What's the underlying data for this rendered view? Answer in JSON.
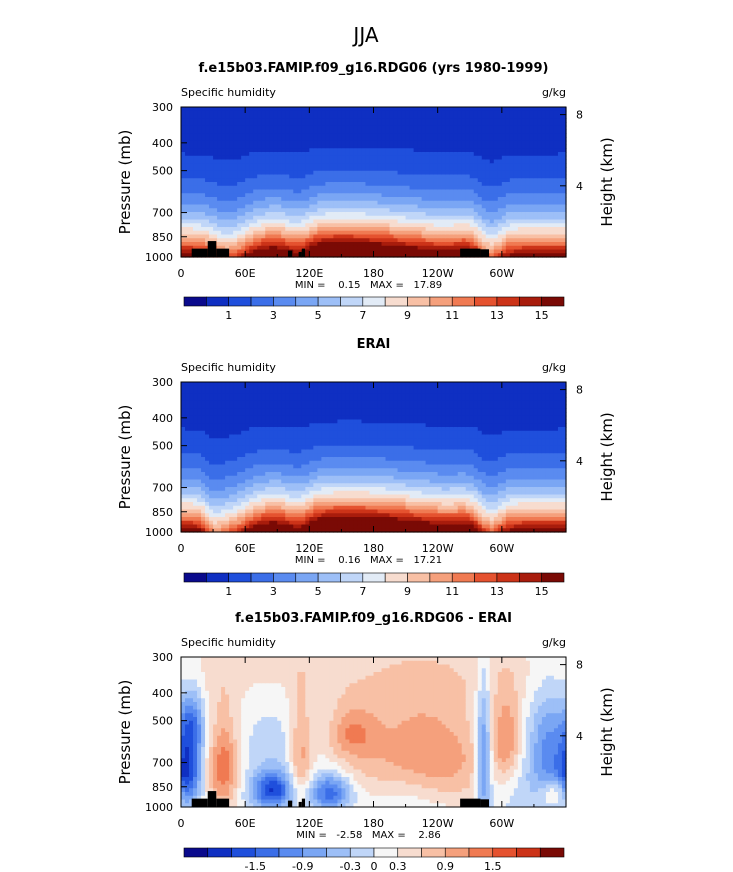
{
  "page_title": "JJA",
  "chart_data": [
    {
      "type": "heatmap",
      "title": "f.e15b03.FAMIP.f09_g16.RDG06 (yrs 1980-1999)",
      "left_label": "Specific humidity",
      "right_label": "g/kg",
      "ylabel": "Pressure (mb)",
      "y2label": "Height (km)",
      "xticks": [
        "0",
        "60E",
        "120E",
        "180",
        "120W",
        "60W"
      ],
      "x_tick_values": [
        0,
        60,
        120,
        180,
        240,
        300
      ],
      "xlim": [
        0,
        360
      ],
      "yticks": [
        "300",
        "400",
        "500",
        "700",
        "850",
        "1000"
      ],
      "y_tick_values": [
        300,
        400,
        500,
        700,
        850,
        1000
      ],
      "ylim": [
        300,
        1000
      ],
      "y_scale": "log",
      "y2ticks": [
        "8",
        "4"
      ],
      "y2_tick_values": [
        8,
        4
      ],
      "min_max_text": "MIN =    0.15   MAX =   17.89",
      "min": 0.15,
      "max": 17.89,
      "profile": "model",
      "terrain": true,
      "levels": [
        0,
        1,
        2,
        3,
        4,
        5,
        6,
        7,
        8,
        9,
        10,
        11,
        12,
        13,
        14,
        15,
        16
      ],
      "colorbar_labels": [
        "1",
        "3",
        "5",
        "7",
        "9",
        "11",
        "13",
        "15"
      ],
      "colorbar_label_positions": [
        1,
        3,
        5,
        7,
        9,
        11,
        13,
        15
      ],
      "colors": [
        "#0a0a8c",
        "#0f2fc2",
        "#1f4fdc",
        "#3b6ee8",
        "#5a8bf0",
        "#7aa6f4",
        "#9dbff7",
        "#c0d6f8",
        "#e2ebf6",
        "#f7dccf",
        "#f8c0a5",
        "#f5a07c",
        "#f07a52",
        "#e5522f",
        "#cc3318",
        "#a81c0c",
        "#7a0a05"
      ]
    },
    {
      "type": "heatmap",
      "title": "ERAI",
      "left_label": "Specific humidity",
      "right_label": "g/kg",
      "ylabel": "Pressure (mb)",
      "y2label": "Height (km)",
      "xticks": [
        "0",
        "60E",
        "120E",
        "180",
        "120W",
        "60W"
      ],
      "x_tick_values": [
        0,
        60,
        120,
        180,
        240,
        300
      ],
      "xlim": [
        0,
        360
      ],
      "yticks": [
        "300",
        "400",
        "500",
        "700",
        "850",
        "1000"
      ],
      "y_tick_values": [
        300,
        400,
        500,
        700,
        850,
        1000
      ],
      "ylim": [
        300,
        1000
      ],
      "y_scale": "log",
      "y2ticks": [
        "8",
        "4"
      ],
      "y2_tick_values": [
        8,
        4
      ],
      "min_max_text": "MIN =    0.16   MAX =   17.21",
      "min": 0.16,
      "max": 17.21,
      "profile": "obs",
      "terrain": false,
      "levels": [
        0,
        1,
        2,
        3,
        4,
        5,
        6,
        7,
        8,
        9,
        10,
        11,
        12,
        13,
        14,
        15,
        16
      ],
      "colorbar_labels": [
        "1",
        "3",
        "5",
        "7",
        "9",
        "11",
        "13",
        "15"
      ],
      "colorbar_label_positions": [
        1,
        3,
        5,
        7,
        9,
        11,
        13,
        15
      ],
      "colors": [
        "#0a0a8c",
        "#0f2fc2",
        "#1f4fdc",
        "#3b6ee8",
        "#5a8bf0",
        "#7aa6f4",
        "#9dbff7",
        "#c0d6f8",
        "#e2ebf6",
        "#f7dccf",
        "#f8c0a5",
        "#f5a07c",
        "#f07a52",
        "#e5522f",
        "#cc3318",
        "#a81c0c",
        "#7a0a05"
      ]
    },
    {
      "type": "heatmap",
      "title": "f.e15b03.FAMIP.f09_g16.RDG06 - ERAI",
      "left_label": "Specific humidity",
      "right_label": "g/kg",
      "ylabel": "Pressure (mb)",
      "y2label": "Height (km)",
      "xticks": [
        "0",
        "60E",
        "120E",
        "180",
        "120W",
        "60W"
      ],
      "x_tick_values": [
        0,
        60,
        120,
        180,
        240,
        300
      ],
      "xlim": [
        0,
        360
      ],
      "yticks": [
        "300",
        "400",
        "500",
        "700",
        "850",
        "1000"
      ],
      "y_tick_values": [
        300,
        400,
        500,
        700,
        850,
        1000
      ],
      "ylim": [
        300,
        1000
      ],
      "y_scale": "log",
      "y2ticks": [
        "8",
        "4"
      ],
      "y2_tick_values": [
        8,
        4
      ],
      "min_max_text": "MIN =   -2.58   MAX =    2.86",
      "min": -2.58,
      "max": 2.86,
      "profile": "diff",
      "terrain": true,
      "levels": [
        -2.1,
        -1.8,
        -1.5,
        -1.2,
        -0.9,
        -0.6,
        -0.3,
        0,
        0.3,
        0.6,
        0.9,
        1.2,
        1.5,
        1.8,
        2.1
      ],
      "colorbar_labels": [
        "-1.5",
        "-0.9",
        "-0.3",
        "0",
        "0.3",
        "0.9",
        "1.5"
      ],
      "colorbar_label_positions": [
        -1.5,
        -0.9,
        -0.3,
        0,
        0.3,
        0.9,
        1.5
      ],
      "colors": [
        "#0a0a8c",
        "#0f2fc2",
        "#1f4fdc",
        "#3b6ee8",
        "#5a8bf0",
        "#7aa6f4",
        "#9dbff7",
        "#c0d6f8",
        "#f6f6f6",
        "#f7dccf",
        "#f8c0a5",
        "#f5a07c",
        "#f07a52",
        "#e5522f",
        "#cc3318",
        "#7a0a05"
      ]
    }
  ]
}
